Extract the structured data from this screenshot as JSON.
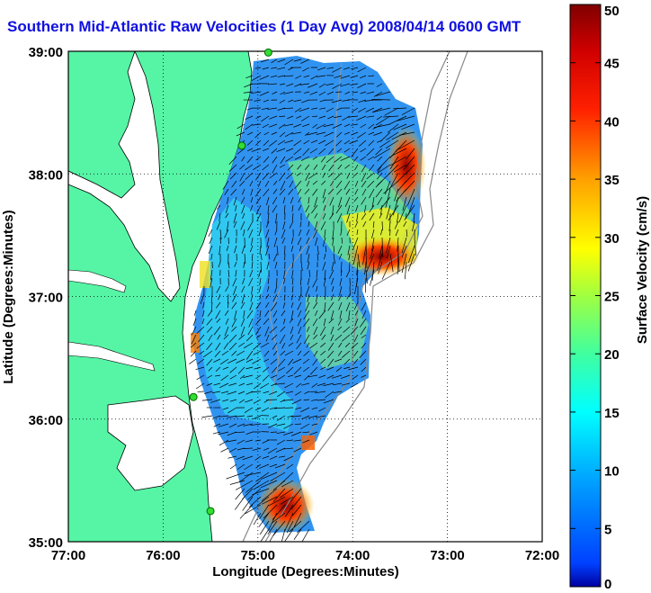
{
  "title": "Southern Mid-Atlantic Raw Velocities (1 Day Avg) 2008/04/14 0600 GMT",
  "x_axis": {
    "label": "Longitude (Degrees:Minutes)",
    "ticks": [
      "77:00",
      "76:00",
      "75:00",
      "74:00",
      "73:00",
      "72:00"
    ]
  },
  "y_axis": {
    "label": "Latitude (Degrees:Minutes)",
    "ticks": [
      "39:00",
      "38:00",
      "37:00",
      "36:00",
      "35:00"
    ]
  },
  "colorbar": {
    "label": "Surface Velocity (cm/s)",
    "ticks": [
      "50",
      "45",
      "40",
      "35",
      "30",
      "25",
      "20",
      "15",
      "10",
      "5",
      "0"
    ],
    "min": 0,
    "max": 50,
    "colormap": "jet"
  },
  "colors": {
    "land": "#55f5a5",
    "water": "#ffffff",
    "title": "#1010e0",
    "station": "#33dd33"
  },
  "map_extent": {
    "lon": [
      -77,
      -72
    ],
    "lat": [
      35,
      39
    ]
  },
  "stations": [
    {
      "lon": -74.89,
      "lat": 38.99
    },
    {
      "lon": -75.17,
      "lat": 38.23
    },
    {
      "lon": -75.68,
      "lat": 36.18
    },
    {
      "lon": -75.5,
      "lat": 35.25
    }
  ],
  "hotspots": [
    {
      "lon": -73.5,
      "lat": 38.2,
      "speed_cm_s": 45
    },
    {
      "lon": -73.75,
      "lat": 37.3,
      "speed_cm_s": 40
    },
    {
      "lon": -74.6,
      "lat": 35.25,
      "speed_cm_s": 47
    }
  ]
}
